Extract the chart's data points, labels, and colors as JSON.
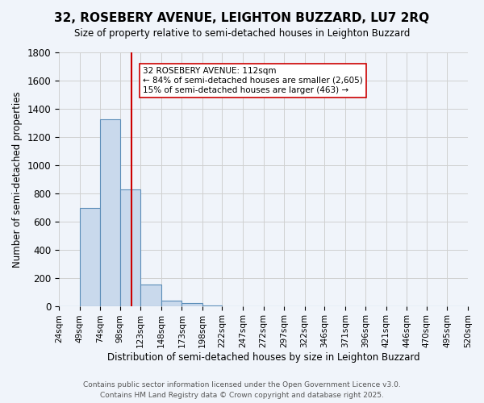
{
  "title": "32, ROSEBERY AVENUE, LEIGHTON BUZZARD, LU7 2RQ",
  "subtitle": "Size of property relative to semi-detached houses in Leighton Buzzard",
  "xlabel": "Distribution of semi-detached houses by size in Leighton Buzzard",
  "ylabel": "Number of semi-detached properties",
  "footer_line1": "Contains HM Land Registry data © Crown copyright and database right 2025.",
  "footer_line2": "Contains public sector information licensed under the Open Government Licence v3.0.",
  "property_size": 112,
  "property_label": "32 ROSEBERY AVENUE: 112sqm",
  "pct_smaller": 84,
  "n_smaller": 2605,
  "pct_larger": 15,
  "n_larger": 463,
  "ylim": [
    0,
    1800
  ],
  "bar_color": "#c9d9ec",
  "bar_edge_color": "#5b8db8",
  "red_line_color": "#cc0000",
  "annotation_box_edge": "#cc0000",
  "annotation_box_face": "white",
  "grid_color": "#d0d0d0",
  "background_color": "#f0f4fa",
  "bin_edges": [
    24,
    49,
    74,
    98,
    123,
    148,
    173,
    198,
    222,
    247,
    272,
    297,
    322,
    346,
    371,
    396,
    421,
    446,
    470,
    495,
    520
  ],
  "bin_labels": [
    "24sqm",
    "49sqm",
    "74sqm",
    "98sqm",
    "123sqm",
    "148sqm",
    "173sqm",
    "198sqm",
    "222sqm",
    "247sqm",
    "272sqm",
    "297sqm",
    "322sqm",
    "346sqm",
    "371sqm",
    "396sqm",
    "421sqm",
    "446sqm",
    "470sqm",
    "495sqm",
    "520sqm"
  ],
  "counts": [
    0,
    693,
    1327,
    830,
    155,
    40,
    18,
    5,
    0,
    0,
    0,
    0,
    0,
    0,
    0,
    0,
    0,
    0,
    0,
    0
  ]
}
